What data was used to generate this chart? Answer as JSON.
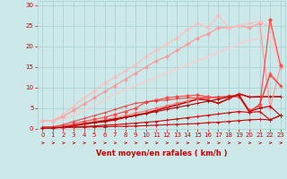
{
  "bg_color": "#cce8e8",
  "grid_color": "#aad4d4",
  "xlabel": "Vent moyen/en rafales ( km/h )",
  "xlabel_color": "#cc0000",
  "xlim": [
    -0.5,
    23.5
  ],
  "ylim": [
    0,
    31
  ],
  "yticks": [
    0,
    5,
    10,
    15,
    20,
    25,
    30
  ],
  "xticks": [
    0,
    1,
    2,
    3,
    4,
    5,
    6,
    7,
    8,
    9,
    10,
    11,
    12,
    13,
    14,
    15,
    16,
    17,
    18,
    19,
    20,
    21,
    22,
    23
  ],
  "lines": [
    {
      "x": [
        0,
        1,
        2,
        3,
        4,
        5,
        6,
        7,
        8,
        9,
        10,
        11,
        12,
        13,
        14,
        15,
        16,
        17,
        18,
        19,
        20,
        21,
        22,
        23
      ],
      "y": [
        0.3,
        0.3,
        0.3,
        0.4,
        0.4,
        0.5,
        0.5,
        0.6,
        0.6,
        0.7,
        0.8,
        0.9,
        1.0,
        1.1,
        1.2,
        1.3,
        1.5,
        1.6,
        1.8,
        2.0,
        2.2,
        2.3,
        2.2,
        3.2
      ],
      "color": "#cc0000",
      "lw": 0.8,
      "marker": "+",
      "ms": 2.5,
      "alpha": 1.0
    },
    {
      "x": [
        0,
        1,
        2,
        3,
        4,
        5,
        6,
        7,
        8,
        9,
        10,
        11,
        12,
        13,
        14,
        15,
        16,
        17,
        18,
        19,
        20,
        21,
        22,
        23
      ],
      "y": [
        0.3,
        0.3,
        0.4,
        0.5,
        0.6,
        0.7,
        0.9,
        1.0,
        1.2,
        1.4,
        1.6,
        1.8,
        2.1,
        2.4,
        2.7,
        3.0,
        3.3,
        3.6,
        3.9,
        4.2,
        4.0,
        4.2,
        2.2,
        3.3
      ],
      "color": "#cc0000",
      "lw": 0.8,
      "marker": "+",
      "ms": 2.5,
      "alpha": 1.0
    },
    {
      "x": [
        0,
        1,
        2,
        3,
        4,
        5,
        6,
        7,
        8,
        9,
        10,
        11,
        12,
        13,
        14,
        15,
        16,
        17,
        18,
        19,
        20,
        21,
        22,
        23
      ],
      "y": [
        0.3,
        0.3,
        0.5,
        0.8,
        1.2,
        1.5,
        1.8,
        2.2,
        2.8,
        3.3,
        3.8,
        4.5,
        5.2,
        5.8,
        6.5,
        7.2,
        7.0,
        6.2,
        7.3,
        8.5,
        7.7,
        7.8,
        7.8,
        7.8
      ],
      "color": "#cc0000",
      "lw": 1.2,
      "marker": "+",
      "ms": 2.5,
      "alpha": 1.0
    },
    {
      "x": [
        0,
        1,
        2,
        3,
        4,
        5,
        6,
        7,
        8,
        9,
        10,
        11,
        12,
        13,
        14,
        15,
        16,
        17,
        18,
        19,
        20,
        21,
        22,
        23
      ],
      "y": [
        2.0,
        2.0,
        2.3,
        3.2,
        4.5,
        5.5,
        7.0,
        8.5,
        9.5,
        10.5,
        11.5,
        12.5,
        13.5,
        14.5,
        15.5,
        16.5,
        17.5,
        18.5,
        19.5,
        20.5,
        21.5,
        22.0,
        23.0,
        14.5
      ],
      "color": "#ffcccc",
      "lw": 1.0,
      "marker": null,
      "ms": 0,
      "alpha": 1.0
    },
    {
      "x": [
        0,
        1,
        2,
        3,
        4,
        5,
        6,
        7,
        8,
        9,
        10,
        11,
        12,
        13,
        14,
        15,
        16,
        17,
        18,
        19,
        20,
        21,
        22,
        23
      ],
      "y": [
        2.0,
        2.0,
        3.0,
        4.5,
        6.0,
        7.5,
        9.0,
        10.5,
        12.0,
        13.5,
        15.0,
        16.5,
        17.5,
        19.0,
        20.5,
        22.0,
        23.0,
        24.5,
        24.5,
        25.0,
        24.5,
        25.5,
        5.0,
        15.0
      ],
      "color": "#ff9999",
      "lw": 1.0,
      "marker": "D",
      "ms": 2.0,
      "alpha": 0.9
    },
    {
      "x": [
        0,
        1,
        2,
        3,
        4,
        5,
        6,
        7,
        8,
        9,
        10,
        11,
        12,
        13,
        14,
        15,
        16,
        17,
        18,
        19,
        20,
        21,
        22,
        23
      ],
      "y": [
        2.0,
        2.0,
        3.5,
        5.5,
        7.5,
        9.0,
        11.0,
        12.5,
        14.0,
        15.5,
        17.5,
        19.0,
        20.5,
        22.0,
        24.0,
        25.5,
        24.5,
        27.5,
        24.5,
        25.0,
        25.5,
        26.0,
        24.5,
        15.5
      ],
      "color": "#ffbbbb",
      "lw": 1.0,
      "marker": "D",
      "ms": 2.0,
      "alpha": 0.8
    },
    {
      "x": [
        0,
        1,
        2,
        3,
        4,
        5,
        6,
        7,
        8,
        9,
        10,
        11,
        12,
        13,
        14,
        15,
        16,
        17,
        18,
        19,
        20,
        21,
        22,
        23
      ],
      "y": [
        0.3,
        0.4,
        0.7,
        1.2,
        1.8,
        2.3,
        2.8,
        3.5,
        4.2,
        5.0,
        6.5,
        7.0,
        7.5,
        7.8,
        8.0,
        8.2,
        7.8,
        7.5,
        8.0,
        8.2,
        4.5,
        5.5,
        26.5,
        15.5
      ],
      "color": "#ff4444",
      "lw": 0.9,
      "marker": "D",
      "ms": 2.0,
      "alpha": 0.9
    },
    {
      "x": [
        0,
        1,
        2,
        3,
        4,
        5,
        6,
        7,
        8,
        9,
        10,
        11,
        12,
        13,
        14,
        15,
        16,
        17,
        18,
        19,
        20,
        21,
        22,
        23
      ],
      "y": [
        0.3,
        0.3,
        0.5,
        0.9,
        1.4,
        1.8,
        2.2,
        2.7,
        3.2,
        3.8,
        4.4,
        5.0,
        5.6,
        6.2,
        6.8,
        7.4,
        7.8,
        7.5,
        7.8,
        7.8,
        4.2,
        5.8,
        13.5,
        10.5
      ],
      "color": "#ff6666",
      "lw": 0.9,
      "marker": "D",
      "ms": 1.8,
      "alpha": 0.8
    },
    {
      "x": [
        0,
        1,
        2,
        3,
        4,
        5,
        6,
        7,
        8,
        9,
        10,
        11,
        12,
        13,
        14,
        15,
        16,
        17,
        18,
        19,
        20,
        21,
        22,
        23
      ],
      "y": [
        0.5,
        0.5,
        1.0,
        1.8,
        2.5,
        3.2,
        3.9,
        4.7,
        5.5,
        6.2,
        6.5,
        6.8,
        7.0,
        7.3,
        7.5,
        7.5,
        7.5,
        7.8,
        7.8,
        7.8,
        4.0,
        6.0,
        13.0,
        10.5
      ],
      "color": "#ee3333",
      "lw": 0.9,
      "marker": "+",
      "ms": 2.5,
      "alpha": 0.8
    },
    {
      "x": [
        0,
        1,
        2,
        3,
        4,
        5,
        6,
        7,
        8,
        9,
        10,
        11,
        12,
        13,
        14,
        15,
        16,
        17,
        18,
        19,
        20,
        21,
        22,
        23
      ],
      "y": [
        0.2,
        0.2,
        0.4,
        0.8,
        1.2,
        1.6,
        2.0,
        2.4,
        2.8,
        3.2,
        3.7,
        4.2,
        4.7,
        5.2,
        5.7,
        6.2,
        6.7,
        7.2,
        7.7,
        8.2,
        4.2,
        5.0,
        5.5,
        3.2
      ],
      "color": "#aa0000",
      "lw": 0.8,
      "marker": "+",
      "ms": 2.5,
      "alpha": 1.0
    }
  ],
  "wind_arrow_angles": [
    0,
    0,
    0,
    0,
    0,
    0,
    0,
    0,
    45,
    45,
    90,
    135,
    90,
    135,
    90,
    135,
    90,
    90,
    135,
    90,
    135,
    90,
    135,
    0
  ]
}
